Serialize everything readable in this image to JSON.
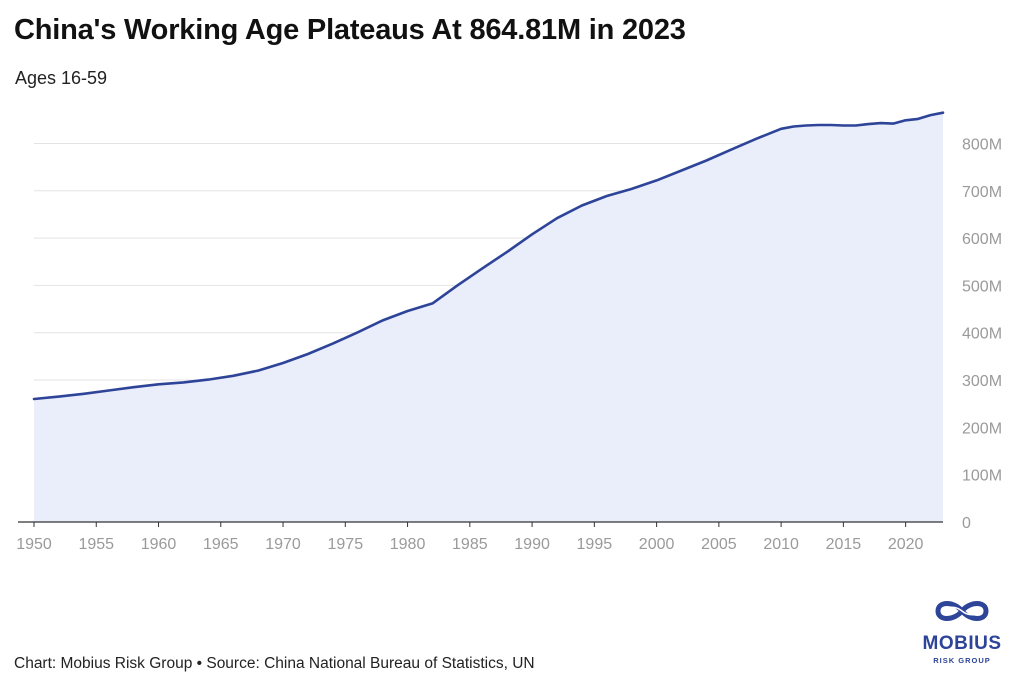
{
  "title": "China's Working Age Plateaus At 864.81M in 2023",
  "subtitle": "Ages 16-59",
  "footer": "Chart: Mobius Risk Group • Source: China National Bureau of Statistics, UN",
  "logo": {
    "name": "MOBIUS",
    "tagline": "RISK GROUP",
    "icon": "infinity-knot-icon"
  },
  "colors": {
    "line": "#2d4499",
    "fill": "#eaedfa",
    "grid": "#e3e3e3",
    "axis": "#333333",
    "tick": "#9a9a9a",
    "logo": "#2d4499"
  },
  "chart_data": {
    "type": "area",
    "title": "China's Working Age Plateaus At 864.81M in 2023",
    "subtitle": "Ages 16-59",
    "xlabel": "",
    "ylabel": "",
    "xlim": [
      1950,
      2023
    ],
    "ylim": [
      0,
      875
    ],
    "grid": true,
    "legend": "none",
    "x_ticks": [
      "1950",
      "1955",
      "1960",
      "1965",
      "1970",
      "1975",
      "1980",
      "1985",
      "1990",
      "1995",
      "2000",
      "2005",
      "2010",
      "2015",
      "2020"
    ],
    "y_ticks": [
      "0",
      "100M",
      "200M",
      "300M",
      "400M",
      "500M",
      "600M",
      "700M",
      "800M"
    ],
    "series": [
      {
        "name": "",
        "x": [
          1950,
          1952,
          1954,
          1956,
          1958,
          1960,
          1962,
          1964,
          1966,
          1968,
          1970,
          1972,
          1974,
          1976,
          1978,
          1980,
          1982,
          1984,
          1986,
          1988,
          1990,
          1992,
          1994,
          1996,
          1998,
          2000,
          2002,
          2004,
          2006,
          2008,
          2010,
          2011,
          2012,
          2013,
          2014,
          2015,
          2016,
          2017,
          2018,
          2019,
          2020,
          2021,
          2022,
          2023
        ],
        "y": [
          260,
          265,
          271,
          278,
          285,
          291,
          295,
          301,
          309,
          320,
          336,
          355,
          377,
          401,
          426,
          446,
          462,
          500,
          536,
          571,
          608,
          642,
          669,
          689,
          704,
          722,
          743,
          764,
          787,
          810,
          831,
          836,
          838,
          839,
          839,
          838,
          838,
          841,
          843,
          842,
          849,
          852,
          860,
          865
        ]
      }
    ]
  }
}
